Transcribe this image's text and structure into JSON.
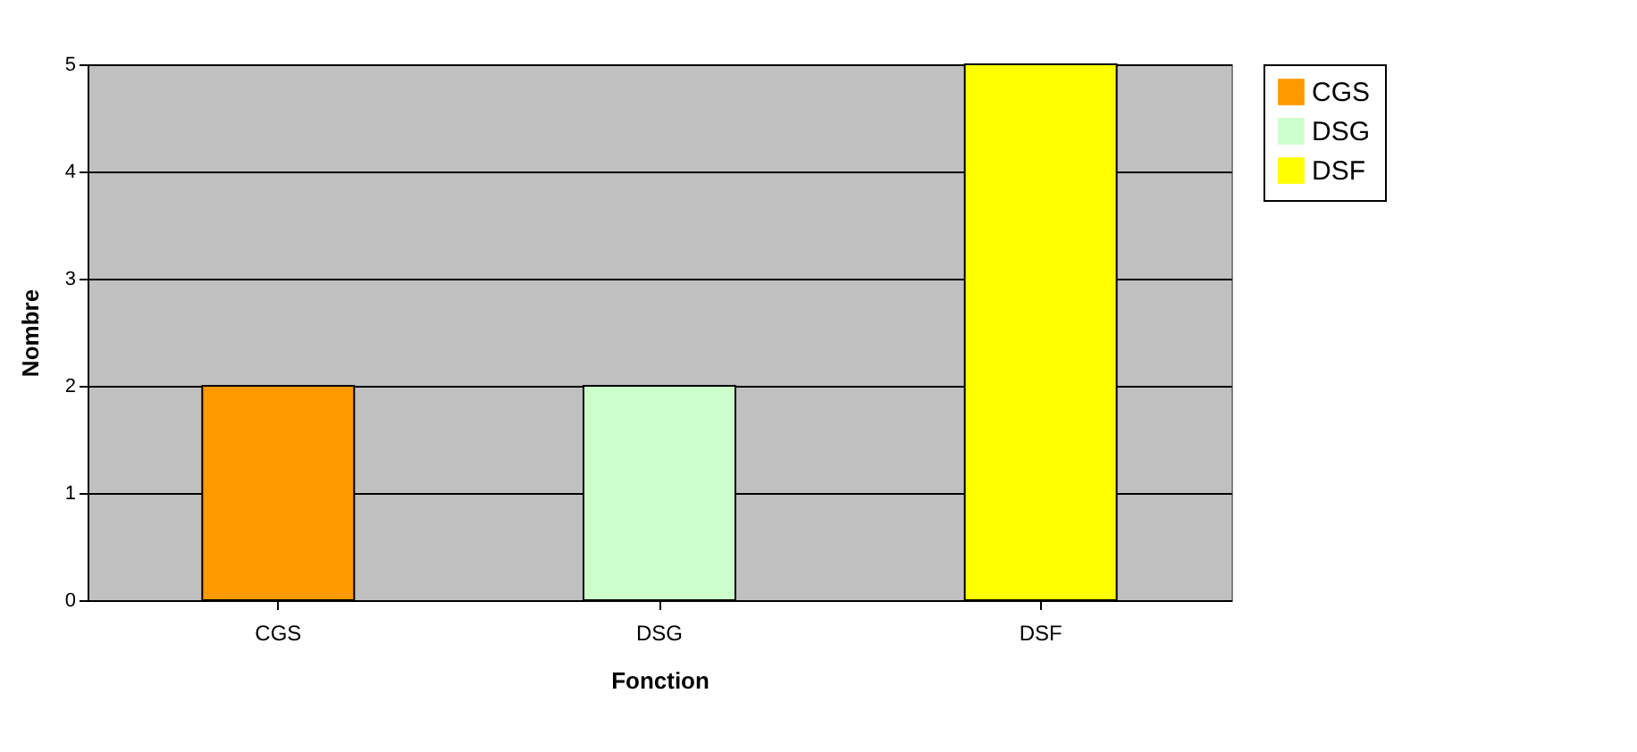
{
  "chart_data": {
    "type": "bar",
    "xlabel": "Fonction",
    "ylabel": "Nombre",
    "categories": [
      "CGS",
      "DSG",
      "DSF"
    ],
    "series": [
      {
        "name": "CGS",
        "color": "#ff9900",
        "values": [
          2,
          null,
          null
        ]
      },
      {
        "name": "DSG",
        "color": "#ccffcc",
        "values": [
          null,
          2,
          null
        ]
      },
      {
        "name": "DSF",
        "color": "#ffff00",
        "values": [
          null,
          null,
          5
        ]
      }
    ],
    "ylim": [
      0,
      5
    ],
    "yticks": [
      0,
      1,
      2,
      3,
      4,
      5
    ],
    "grid": "y",
    "legend": "right"
  }
}
